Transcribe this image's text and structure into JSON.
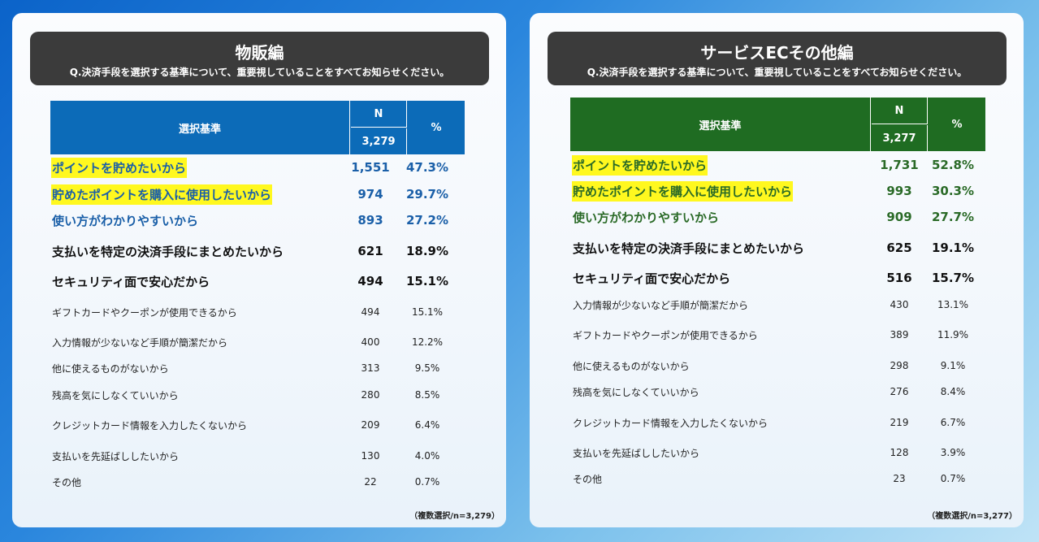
{
  "colors": {
    "left_header": "#0c6bb8",
    "left_accent": "#1a5fa8",
    "right_header": "#1f6c22",
    "right_accent": "#2a6a27",
    "highlight": "#fff81f"
  },
  "left": {
    "title": "物販編",
    "question": "Q.決済手段を選択する基準について、重要視していることをすべてお知らせください。",
    "header": {
      "criteria": "選択基準",
      "n": "N",
      "n_total": "3,279",
      "pct": "%"
    },
    "rows": [
      {
        "label": "ポイントを貯めたいから",
        "n": "1,551",
        "pct": "47.3%",
        "level": 1,
        "highlight": true
      },
      {
        "label": "貯めたポイントを購入に使用したいから",
        "n": "974",
        "pct": "29.7%",
        "level": 1,
        "highlight": true
      },
      {
        "label": "使い方がわかりやすいから",
        "n": "893",
        "pct": "27.2%",
        "level": 1,
        "highlight": false
      },
      {
        "label": "支払いを特定の決済手段にまとめたいから",
        "n": "621",
        "pct": "18.9%",
        "level": 2,
        "highlight": false
      },
      {
        "label": "セキュリティ面で安心だから",
        "n": "494",
        "pct": "15.1%",
        "level": 2,
        "highlight": false
      },
      {
        "label": "ギフトカードやクーポンが使用できるから",
        "n": "494",
        "pct": "15.1%",
        "level": 3,
        "highlight": false
      },
      {
        "label": "入力情報が少ないなど手順が簡潔だから",
        "n": "400",
        "pct": "12.2%",
        "level": 3,
        "highlight": false
      },
      {
        "label": "他に使えるものがないから",
        "n": "313",
        "pct": "9.5%",
        "level": 3,
        "highlight": false
      },
      {
        "label": "残高を気にしなくていいから",
        "n": "280",
        "pct": "8.5%",
        "level": 3,
        "highlight": false
      },
      {
        "label": "クレジットカード情報を入力したくないから",
        "n": "209",
        "pct": "6.4%",
        "level": 3,
        "highlight": false
      },
      {
        "label": "支払いを先延ばししたいから",
        "n": "130",
        "pct": "4.0%",
        "level": 3,
        "highlight": false
      },
      {
        "label": "その他",
        "n": "22",
        "pct": "0.7%",
        "level": 3,
        "highlight": false
      }
    ],
    "footnote": "（複数選択/n=3,279）"
  },
  "right": {
    "title": "サービスECその他編",
    "question": "Q.決済手段を選択する基準について、重要視していることをすべてお知らせください。",
    "header": {
      "criteria": "選択基準",
      "n": "N",
      "n_total": "3,277",
      "pct": "%"
    },
    "rows": [
      {
        "label": "ポイントを貯めたいから",
        "n": "1,731",
        "pct": "52.8%",
        "level": 1,
        "highlight": true
      },
      {
        "label": "貯めたポイントを購入に使用したいから",
        "n": "993",
        "pct": "30.3%",
        "level": 1,
        "highlight": true
      },
      {
        "label": "使い方がわかりやすいから",
        "n": "909",
        "pct": "27.7%",
        "level": 1,
        "highlight": false
      },
      {
        "label": "支払いを特定の決済手段にまとめたいから",
        "n": "625",
        "pct": "19.1%",
        "level": 2,
        "highlight": false
      },
      {
        "label": "セキュリティ面で安心だから",
        "n": "516",
        "pct": "15.7%",
        "level": 2,
        "highlight": false
      },
      {
        "label": "入力情報が少ないなど手順が簡潔だから",
        "n": "430",
        "pct": "13.1%",
        "level": 3,
        "highlight": false
      },
      {
        "label": "ギフトカードやクーポンが使用できるから",
        "n": "389",
        "pct": "11.9%",
        "level": 3,
        "highlight": false
      },
      {
        "label": "他に使えるものがないから",
        "n": "298",
        "pct": "9.1%",
        "level": 3,
        "highlight": false
      },
      {
        "label": "残高を気にしなくていいから",
        "n": "276",
        "pct": "8.4%",
        "level": 3,
        "highlight": false
      },
      {
        "label": "クレジットカード情報を入力したくないから",
        "n": "219",
        "pct": "6.7%",
        "level": 3,
        "highlight": false
      },
      {
        "label": "支払いを先延ばししたいから",
        "n": "128",
        "pct": "3.9%",
        "level": 3,
        "highlight": false
      },
      {
        "label": "その他",
        "n": "23",
        "pct": "0.7%",
        "level": 3,
        "highlight": false
      }
    ],
    "footnote": "（複数選択/n=3,277）"
  }
}
